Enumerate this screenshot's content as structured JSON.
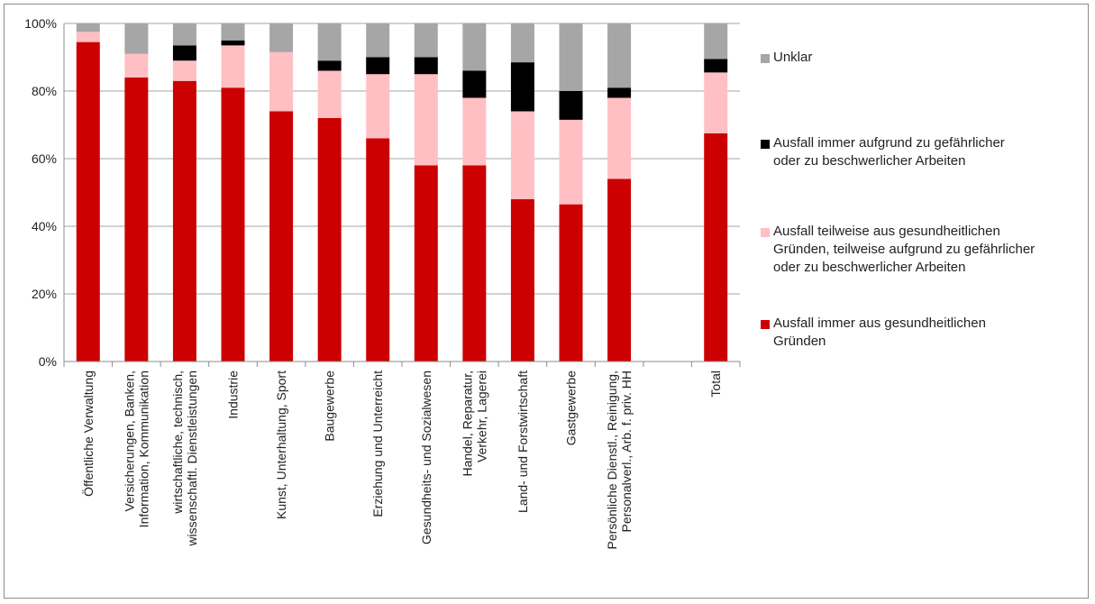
{
  "chart_data": {
    "type": "bar",
    "stacked": true,
    "categories": [
      "Öffentliche Verwaltung",
      "Versicherungen, Banken,\nInformation, Kommunikation",
      "wirtschaftliche, technisch,\nwissenschaftl. Dienstleistungen",
      "Industrie",
      "Kunst, Unterhaltung, Sport",
      "Baugewerbe",
      "Erziehung und Unterreicht",
      "Gesundheits- und Sozialwesen",
      "Handel, Reparatur,\nVerkehr, Lagerei",
      "Land- und Forstwirtschaft",
      "Gastgewerbe",
      "Persönliche Dienstl., Reinigung,\nPersonalverl., Arb. f. priv. HH",
      "",
      "Total"
    ],
    "series": [
      {
        "name": "Ausfall immer aus gesundheitlichen\nGründen",
        "color": "#cc0000",
        "values": [
          94.5,
          84,
          83,
          81,
          74,
          72,
          66,
          58,
          58,
          48,
          46.5,
          54,
          null,
          67.5
        ]
      },
      {
        "name": "Ausfall teilweise aus gesundheitlichen\nGründen, teilweise aufgrund zu gefährlicher\noder zu beschwerlicher Arbeiten",
        "color": "#ffbfc3",
        "values": [
          3,
          7,
          6,
          12.5,
          17.5,
          14,
          19,
          27,
          20,
          26,
          25,
          24,
          null,
          18
        ]
      },
      {
        "name": "Ausfall immer aufgrund zu gefährlicher\noder zu beschwerlicher Arbeiten",
        "color": "#000000",
        "values": [
          0,
          0,
          4.5,
          1.5,
          0,
          3,
          5,
          5,
          8,
          14.5,
          8.5,
          3,
          null,
          4
        ]
      },
      {
        "name": "Unklar",
        "color": "#a6a6a6",
        "values": [
          2.5,
          9,
          6.5,
          5,
          8.5,
          11,
          10,
          10,
          14,
          11.5,
          20,
          19,
          null,
          10.5
        ]
      }
    ],
    "ylim": [
      0,
      100
    ],
    "yticks": [
      "0%",
      "20%",
      "40%",
      "60%",
      "80%",
      "100%"
    ],
    "ytick_values": [
      0,
      20,
      40,
      60,
      80,
      100
    ],
    "grid": true,
    "legend": {
      "position": "right",
      "order": [
        "Unklar",
        "Ausfall immer aufgrund zu gefährlicher\noder zu beschwerlicher Arbeiten",
        "Ausfall teilweise aus gesundheitlichen\nGründen, teilweise aufgrund zu gefährlicher\noder zu beschwerlicher Arbeiten",
        "Ausfall immer aus gesundheitlichen\nGründen"
      ]
    }
  },
  "legend_items": [
    {
      "label": "Unklar",
      "color": "#a6a6a6"
    },
    {
      "label": "Ausfall immer aufgrund zu gefährlicher\noder zu beschwerlicher Arbeiten",
      "color": "#000000"
    },
    {
      "label": "Ausfall teilweise aus gesundheitlichen\nGründen, teilweise aufgrund zu gefährlicher\noder zu beschwerlicher Arbeiten",
      "color": "#ffbfc3"
    },
    {
      "label": "Ausfall immer aus gesundheitlichen\nGründen",
      "color": "#cc0000"
    }
  ]
}
